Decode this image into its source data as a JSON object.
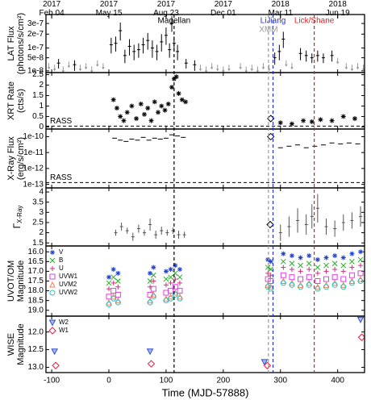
{
  "chart_data": [
    {
      "type": "scatter",
      "ylabel": [
        "LAT Flux",
        "(photons/s/cm²)"
      ],
      "xlim": [
        -110,
        447
      ],
      "ylim": [
        7e-09,
        4e-07
      ],
      "yscale": "sqrt",
      "yticks": [
        {
          "value": 1e-08,
          "label": "1e-8"
        },
        {
          "value": 5e-08,
          "label": "5e-8"
        },
        {
          "value": 1e-07,
          "label": "1e-7"
        },
        {
          "value": 2e-07,
          "label": "2e-7"
        },
        {
          "value": 3e-07,
          "label": "3e-7"
        }
      ],
      "x2ticks": [
        {
          "value": -100,
          "label": "2017 Feb 04"
        },
        {
          "value": 0,
          "label": "2017 May 15"
        },
        {
          "value": 100,
          "label": "2017 Aug 23"
        },
        {
          "value": 200,
          "label": "2017 Dec 01"
        },
        {
          "value": 300,
          "label": "2018 Mar 11"
        },
        {
          "value": 400,
          "label": "2018 Jun 19"
        }
      ],
      "vlines": [
        {
          "label": "Magellan",
          "x": 114,
          "color": "#000000"
        },
        {
          "label": "LiJiang",
          "x": 287,
          "color": "#2030e0"
        },
        {
          "label": "XMM",
          "x": 279,
          "color": "#999999"
        },
        {
          "label": "Lick/Shane",
          "x": 359,
          "color": "#e02020"
        }
      ],
      "series": [
        {
          "color": "#000000",
          "marker": "errorbar",
          "x": [
            -88,
            -60,
            4,
            12,
            20,
            28,
            36,
            44,
            52,
            60,
            68,
            76,
            84,
            92,
            100,
            106,
            110,
            114,
            120,
            135,
            150,
            290,
            298,
            305,
            335,
            345,
            355,
            365,
            375,
            390
          ],
          "values": [
            3e-08,
            2.5e-08,
            1.2e-07,
            1.3e-07,
            2.3e-07,
            6e-08,
            1.1e-07,
            8e-08,
            9e-08,
            1.2e-07,
            1.5e-07,
            1e-07,
            8e-08,
            1.4e-07,
            1.9e-07,
            9e-08,
            3e-07,
            1.3e-07,
            8e-08,
            3e-08,
            2.5e-08,
            5e-08,
            8e-08,
            1.6e-07,
            7e-08,
            6e-08,
            5e-08,
            6e-08,
            5e-08,
            6e-08
          ],
          "errors": [
            1.5e-08,
            1.5e-08,
            5e-08,
            5e-08,
            8e-08,
            3e-08,
            5e-08,
            4e-08,
            4e-08,
            5e-08,
            6e-08,
            5e-08,
            4e-08,
            6e-08,
            7e-08,
            4e-08,
            8e-08,
            5e-08,
            4e-08,
            1.5e-08,
            1.5e-08,
            2.5e-08,
            4e-08,
            6e-08,
            3e-08,
            2.5e-08,
            2e-08,
            2.5e-08,
            2e-08,
            2.5e-08
          ]
        },
        {
          "color": "#999999",
          "marker": "upper-limit",
          "x": [
            -105,
            -95,
            -80,
            -70,
            -50,
            -40,
            -30,
            -20,
            -10,
            160,
            170,
            180,
            190,
            200,
            210,
            230,
            240,
            250,
            260,
            270,
            280,
            310,
            320,
            400,
            415,
            425,
            435,
            445
          ],
          "values": [
            3e-08,
            2.5e-08,
            2e-08,
            3.5e-08,
            2.5e-08,
            3e-08,
            2e-08,
            4e-08,
            3e-08,
            2.5e-08,
            2e-08,
            3e-08,
            2.5e-08,
            2e-08,
            2.5e-08,
            3e-08,
            2e-08,
            2.5e-08,
            2e-08,
            3e-08,
            2.5e-08,
            4e-08,
            3e-08,
            5e-08,
            3e-08,
            2.5e-08,
            3e-08,
            2.5e-08
          ]
        }
      ]
    },
    {
      "type": "scatter",
      "ylabel": [
        "XRT Rate",
        "(cts/s)"
      ],
      "xlim": [
        -110,
        447
      ],
      "ylim": [
        -0.1,
        2.6
      ],
      "yticks": [
        0,
        0.5,
        1,
        1.5,
        2,
        2.5
      ],
      "hlines": [
        {
          "label": "RASS",
          "y": 0.04
        }
      ],
      "series": [
        {
          "color": "#000000",
          "marker": "asterisk",
          "x": [
            8,
            14,
            20,
            26,
            32,
            40,
            48,
            56,
            62,
            68,
            74,
            80,
            86,
            92,
            98,
            104,
            110,
            114,
            118,
            122,
            128,
            134,
            300,
            320,
            340,
            355,
            370,
            390,
            410,
            430
          ],
          "values": [
            1.3,
            0.9,
            0.5,
            0.3,
            0.7,
            1.0,
            0.4,
            1.1,
            0.6,
            0.9,
            0.3,
            1.2,
            0.7,
            1.0,
            0.8,
            1.1,
            1.9,
            2.3,
            2.4,
            1.6,
            1.3,
            1.2,
            0.2,
            0.15,
            0.3,
            0.25,
            0.35,
            0.3,
            0.5,
            0.4
          ]
        },
        {
          "color": "#000000",
          "marker": "diamond",
          "x": [
            283
          ],
          "values": [
            0.4
          ]
        }
      ]
    },
    {
      "type": "scatter",
      "ylabel": [
        "X-Ray Flux",
        "(erg/s/cm²)"
      ],
      "xlim": [
        -110,
        447
      ],
      "ylim": [
        6e-14,
        3e-10
      ],
      "yscale": "log",
      "yticks": [
        {
          "value": 1e-13,
          "label": "1e-13"
        },
        {
          "value": 1e-12,
          "label": "1e-12"
        },
        {
          "value": 1e-11,
          "label": "1e-11"
        },
        {
          "value": 1e-10,
          "label": "1e-10"
        }
      ],
      "hlines": [
        {
          "label": "RASS",
          "y": 1.3e-13
        }
      ],
      "series": [
        {
          "color": "#000000",
          "marker": "dash",
          "x": [
            10,
            20,
            30,
            40,
            50,
            60,
            70,
            80,
            90,
            100,
            110,
            120,
            130,
            300,
            315,
            330,
            345,
            360,
            375,
            390,
            405,
            420,
            435
          ],
          "values": [
            8e-11,
            6e-11,
            5e-11,
            7e-11,
            6e-11,
            9e-11,
            6e-11,
            8e-11,
            7e-11,
            8e-11,
            1.3e-10,
            1.1e-10,
            9e-11,
            2e-11,
            2.5e-11,
            3e-11,
            2e-11,
            2.5e-11,
            3e-11,
            4e-11,
            3.5e-11,
            4e-11,
            3.5e-11
          ]
        },
        {
          "color": "#000000",
          "marker": "diamond",
          "x": [
            283
          ],
          "values": [
            1e-10
          ]
        }
      ]
    },
    {
      "type": "scatter",
      "ylabel": [
        "Γ"
      ],
      "ylabel_sub": "X-Ray",
      "xlim": [
        -110,
        447
      ],
      "ylim": [
        1.35,
        4.2
      ],
      "yticks": [
        1.5,
        2,
        2.5,
        3,
        3.5,
        4
      ],
      "series": [
        {
          "color": "#555555",
          "marker": "errorbar",
          "x": [
            12,
            22,
            32,
            42,
            52,
            62,
            72,
            82,
            92,
            102,
            112,
            122,
            132,
            300,
            315,
            330,
            345,
            355,
            365,
            380,
            395,
            410,
            425,
            440
          ],
          "values": [
            2.0,
            2.3,
            2.1,
            1.8,
            2.2,
            2.0,
            2.4,
            1.9,
            2.1,
            2.0,
            2.1,
            1.9,
            1.9,
            2.0,
            2.3,
            2.6,
            2.4,
            2.8,
            3.2,
            2.3,
            2.2,
            2.5,
            2.6,
            2.8
          ],
          "errors": [
            0.15,
            0.2,
            0.15,
            0.2,
            0.2,
            0.15,
            0.3,
            0.2,
            0.2,
            0.15,
            0.15,
            0.2,
            0.15,
            0.4,
            0.5,
            0.6,
            0.5,
            0.6,
            0.7,
            0.4,
            0.4,
            0.4,
            0.4,
            0.5
          ]
        },
        {
          "color": "#000000",
          "marker": "diamond",
          "x": [
            282
          ],
          "values": [
            2.4
          ]
        }
      ]
    },
    {
      "type": "scatter",
      "ylabel": [
        "UVOT/OM",
        "Magnitude"
      ],
      "xlim": [
        -110,
        447
      ],
      "ylim": [
        15.7,
        19.3
      ],
      "y_inverted": true,
      "legend": "upper left",
      "yticks": [
        {
          "value": 16,
          "label": "16.0"
        },
        16.5,
        {
          "value": 17,
          "label": "17.0"
        },
        17.5,
        {
          "value": 18,
          "label": "18.0"
        },
        18.5,
        {
          "value": 19,
          "label": "19.0"
        }
      ],
      "series": [
        {
          "name": "V",
          "color": "#2040d0",
          "marker": "asterisk",
          "x": [
            0,
            8,
            16,
            72,
            78,
            100,
            108,
            116,
            124,
            278,
            283,
            305,
            320,
            335,
            350,
            365,
            380,
            395,
            410,
            425,
            440
          ],
          "values": [
            17.3,
            16.9,
            17.1,
            17.1,
            16.8,
            17.0,
            16.9,
            16.7,
            16.9,
            16.4,
            16.5,
            16.1,
            16.2,
            16.3,
            16.2,
            16.4,
            16.3,
            16.2,
            16.3,
            16.1,
            16.0
          ]
        },
        {
          "name": "B",
          "color": "#20b020",
          "marker": "x",
          "x": [
            0,
            8,
            16,
            72,
            78,
            100,
            108,
            116,
            124,
            278,
            283,
            305,
            320,
            335,
            350,
            365,
            380,
            395,
            410,
            425,
            440
          ],
          "values": [
            17.6,
            17.3,
            17.5,
            17.5,
            17.2,
            17.4,
            17.3,
            17.1,
            17.3,
            16.8,
            16.9,
            16.5,
            16.6,
            16.7,
            16.6,
            16.8,
            16.7,
            16.6,
            16.7,
            16.5,
            16.4
          ]
        },
        {
          "name": "U",
          "color": "#d0307a",
          "marker": "plus",
          "x": [
            0,
            8,
            16,
            72,
            78,
            100,
            108,
            116,
            124,
            278,
            283,
            305,
            320,
            335,
            350,
            365,
            380,
            395,
            410,
            425,
            440
          ],
          "values": [
            17.9,
            17.6,
            17.8,
            17.8,
            17.5,
            17.7,
            17.6,
            17.4,
            17.6,
            17.1,
            17.2,
            16.8,
            16.9,
            17.0,
            16.9,
            17.1,
            17.0,
            16.9,
            17.0,
            16.8,
            16.7
          ]
        },
        {
          "name": "UVW1",
          "color": "#e040e0",
          "marker": "square",
          "x": [
            0,
            8,
            16,
            72,
            78,
            100,
            108,
            116,
            124,
            278,
            283,
            305,
            320,
            335,
            350,
            365,
            380,
            395,
            410,
            425,
            440
          ],
          "values": [
            18.3,
            18.0,
            18.2,
            18.2,
            17.9,
            18.1,
            18.0,
            17.8,
            18.0,
            17.4,
            17.5,
            17.2,
            17.3,
            17.4,
            17.3,
            17.5,
            17.4,
            17.3,
            17.4,
            17.2,
            17.1
          ]
        },
        {
          "name": "UVM2",
          "color": "#f08050",
          "marker": "triangle",
          "x": [
            0,
            8,
            16,
            72,
            78,
            100,
            108,
            116,
            124,
            278,
            283,
            305,
            320,
            335,
            350,
            365,
            380,
            395,
            410,
            425,
            440
          ],
          "values": [
            18.6,
            18.3,
            18.5,
            18.5,
            18.2,
            18.4,
            18.3,
            18.1,
            18.3,
            17.7,
            17.8,
            17.5,
            17.6,
            17.7,
            17.6,
            17.8,
            17.7,
            17.6,
            17.7,
            17.5,
            17.4
          ]
        },
        {
          "name": "UVW2",
          "color": "#30c0c0",
          "marker": "circle",
          "x": [
            0,
            8,
            16,
            72,
            78,
            100,
            108,
            116,
            124,
            278,
            283,
            305,
            320,
            335,
            350,
            365,
            380,
            395,
            410,
            425,
            440
          ],
          "values": [
            18.7,
            18.4,
            18.6,
            18.6,
            18.3,
            18.5,
            18.4,
            18.2,
            18.4,
            17.8,
            17.9,
            17.6,
            17.7,
            17.8,
            17.7,
            17.9,
            17.8,
            17.7,
            17.8,
            17.6,
            17.5
          ]
        }
      ]
    },
    {
      "type": "scatter",
      "ylabel": [
        "WISE",
        "Magnitude"
      ],
      "xlim": [
        -110,
        447
      ],
      "ylim": [
        11.55,
        13.15
      ],
      "y_inverted": true,
      "legend": "upper left",
      "yticks": [
        {
          "value": 12,
          "label": "12.0"
        },
        12.5,
        {
          "value": 13,
          "label": "13.0"
        }
      ],
      "xticks": [
        -100,
        0,
        100,
        200,
        300,
        400
      ],
      "xlabel": "Time (MJD-57888)",
      "series": [
        {
          "name": "W2",
          "color": "#3050d0",
          "marker": "triangle-down",
          "x": [
            -95,
            72,
            272,
            440
          ],
          "values": [
            12.55,
            12.55,
            12.85,
            11.65
          ]
        },
        {
          "name": "W1",
          "color": "#e02040",
          "marker": "diamond",
          "x": [
            -93,
            74,
            277,
            442
          ],
          "values": [
            12.95,
            12.9,
            12.95,
            12.15
          ]
        }
      ]
    }
  ]
}
